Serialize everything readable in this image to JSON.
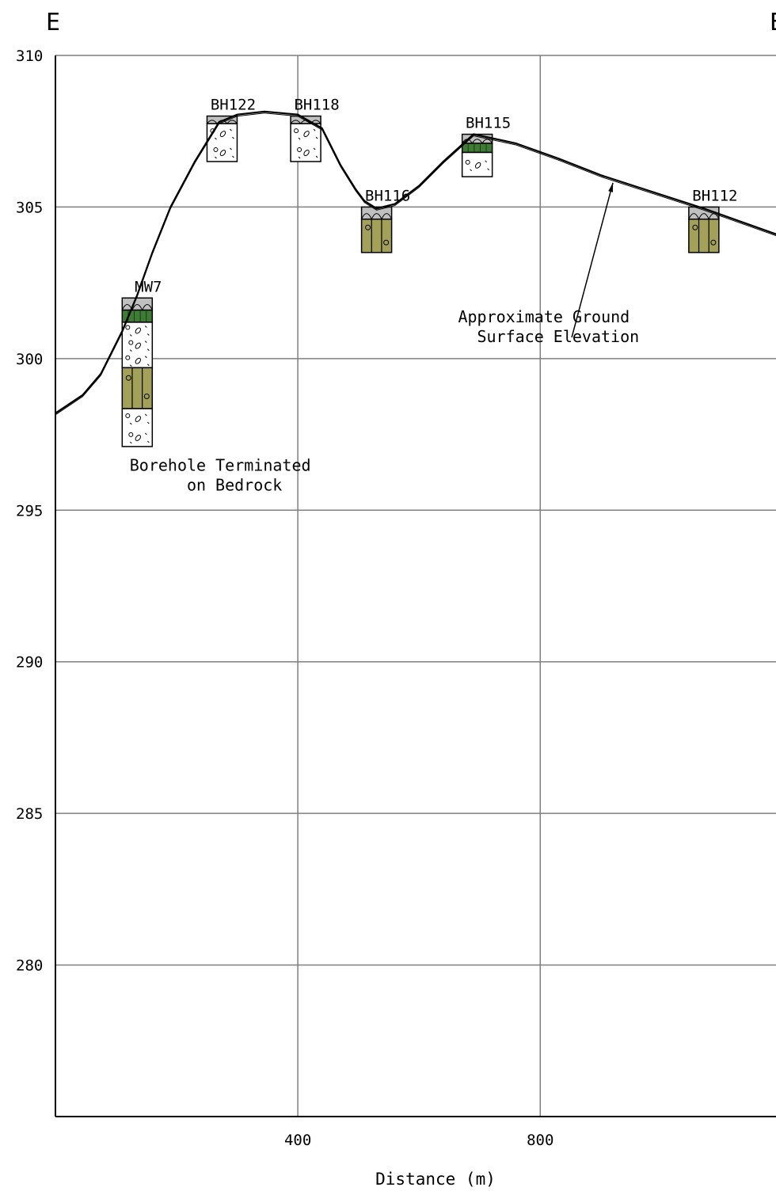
{
  "section": {
    "start_letter": "E",
    "end_letter": "E"
  },
  "colors": {
    "grid": "#7f7f7f",
    "frame": "#000000",
    "topsoil": "#c0c0c0",
    "organic": "#3e7b35",
    "till": "#ffffff",
    "silt_clay": "#a3a05a"
  },
  "chart_data": {
    "type": "cross-section",
    "title": "",
    "xlabel": "Distance (m)",
    "ylabel": "",
    "xlim": [
      0,
      1190
    ],
    "ylim": [
      275,
      310
    ],
    "x_ticks": [
      400,
      800
    ],
    "x_tick_labels": [
      "400",
      "800"
    ],
    "y_ticks": [
      310,
      305,
      300,
      295,
      290,
      285,
      280
    ],
    "y_tick_labels": [
      "310",
      "305",
      "300",
      "295",
      "290",
      "285",
      "280"
    ],
    "grid": true,
    "ground_surface": {
      "x": [
        0,
        45,
        75,
        110,
        135,
        160,
        190,
        230,
        270,
        300,
        345,
        400,
        440,
        470,
        495,
        510,
        530,
        560,
        600,
        640,
        690,
        760,
        830,
        900,
        1070,
        1190
      ],
      "y": [
        298.2,
        298.8,
        299.5,
        300.9,
        302.1,
        303.5,
        305.0,
        306.5,
        307.8,
        308.05,
        308.15,
        308.05,
        307.6,
        306.4,
        305.6,
        305.2,
        304.95,
        305.1,
        305.7,
        306.5,
        307.4,
        307.1,
        306.6,
        306.05,
        304.95,
        304.1
      ]
    },
    "boreholes": [
      {
        "id": "MW7",
        "x": 135,
        "layers": [
          {
            "material": "topsoil",
            "top": 302.0,
            "bottom": 301.6
          },
          {
            "material": "organic",
            "top": 301.6,
            "bottom": 301.2
          },
          {
            "material": "till",
            "top": 301.2,
            "bottom": 299.7
          },
          {
            "material": "silt_clay",
            "top": 299.7,
            "bottom": 298.35
          },
          {
            "material": "till",
            "top": 298.35,
            "bottom": 297.1
          }
        ]
      },
      {
        "id": "BH122",
        "x": 275,
        "layers": [
          {
            "material": "topsoil",
            "top": 308.0,
            "bottom": 307.75
          },
          {
            "material": "till",
            "top": 307.75,
            "bottom": 306.5
          }
        ]
      },
      {
        "id": "BH118",
        "x": 413,
        "layers": [
          {
            "material": "topsoil",
            "top": 308.0,
            "bottom": 307.75
          },
          {
            "material": "till",
            "top": 307.75,
            "bottom": 306.5
          }
        ]
      },
      {
        "id": "BH116",
        "x": 530,
        "layers": [
          {
            "material": "topsoil",
            "top": 305.0,
            "bottom": 304.6
          },
          {
            "material": "silt_clay",
            "top": 304.6,
            "bottom": 303.5
          }
        ]
      },
      {
        "id": "BH115",
        "x": 696,
        "layers": [
          {
            "material": "topsoil",
            "top": 307.4,
            "bottom": 307.1
          },
          {
            "material": "organic",
            "top": 307.1,
            "bottom": 306.8
          },
          {
            "material": "till",
            "top": 306.8,
            "bottom": 306.0
          }
        ]
      },
      {
        "id": "BH112",
        "x": 1070,
        "layers": [
          {
            "material": "topsoil",
            "top": 305.0,
            "bottom": 304.6
          },
          {
            "material": "silt_clay",
            "top": 304.6,
            "bottom": 303.5
          }
        ]
      }
    ],
    "annotations": [
      {
        "lines": [
          "Approximate Ground",
          "Surface Elevation"
        ],
        "text_at": [
          806,
          301.2
        ],
        "arrow_from": [
          852,
          300.7
        ],
        "arrow_to": [
          920,
          305.8
        ]
      },
      {
        "lines": [
          "Borehole Terminated",
          "on Bedrock"
        ],
        "text_at": [
          272,
          296.3
        ]
      }
    ]
  }
}
